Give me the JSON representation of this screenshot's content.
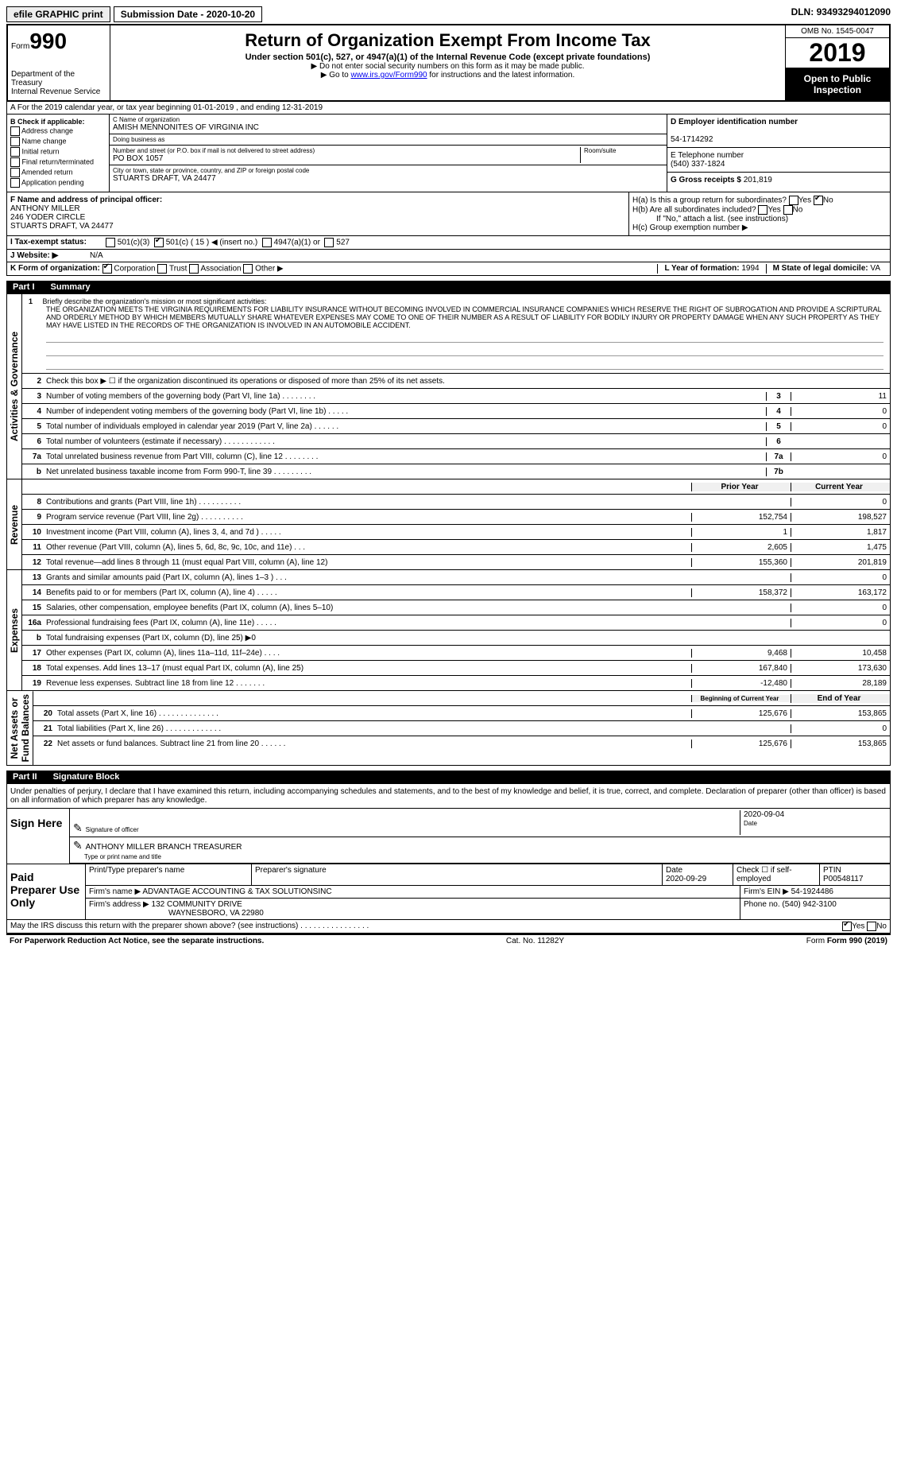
{
  "topbar": {
    "efile": "efile GRAPHIC print",
    "submission_label": "Submission Date - ",
    "submission_date": "2020-10-20",
    "dln_label": "DLN: ",
    "dln": "93493294012090"
  },
  "header": {
    "form_label": "Form",
    "form_number": "990",
    "dept": "Department of the Treasury\nInternal Revenue Service",
    "title": "Return of Organization Exempt From Income Tax",
    "subtitle": "Under section 501(c), 527, or 4947(a)(1) of the Internal Revenue Code (except private foundations)",
    "note1": "▶ Do not enter social security numbers on this form as it may be made public.",
    "note2_pre": "▶ Go to ",
    "note2_link": "www.irs.gov/Form990",
    "note2_post": " for instructions and the latest information.",
    "omb": "OMB No. 1545-0047",
    "year": "2019",
    "inspect": "Open to Public Inspection"
  },
  "rowA": "A For the 2019 calendar year, or tax year beginning 01-01-2019   , and ending 12-31-2019",
  "colB": {
    "header": "B Check if applicable:",
    "items": [
      "Address change",
      "Name change",
      "Initial return",
      "Final return/terminated",
      "Amended return",
      "Application pending"
    ]
  },
  "colC": {
    "name_label": "C Name of organization",
    "name": "AMISH MENNONITES OF VIRGINIA INC",
    "dba_label": "Doing business as",
    "dba": "",
    "addr_label": "Number and street (or P.O. box if mail is not delivered to street address)",
    "addr": "PO BOX 1057",
    "room_label": "Room/suite",
    "city_label": "City or town, state or province, country, and ZIP or foreign postal code",
    "city": "STUARTS DRAFT, VA  24477"
  },
  "colD": {
    "ein_label": "D Employer identification number",
    "ein": "54-1714292",
    "phone_label": "E Telephone number",
    "phone": "(540) 337-1824",
    "gross_label": "G Gross receipts $ ",
    "gross": "201,819"
  },
  "rowF": {
    "label": "F Name and address of principal officer:",
    "name": "ANTHONY MILLER",
    "addr1": "246 YODER CIRCLE",
    "addr2": "STUARTS DRAFT, VA  24477"
  },
  "rowH": {
    "ha": "H(a)  Is this a group return for subordinates?",
    "hb": "H(b)  Are all subordinates included?",
    "hb_note": "If \"No,\" attach a list. (see instructions)",
    "hc": "H(c)  Group exemption number ▶",
    "yes": "Yes",
    "no": "No"
  },
  "rowI": {
    "label": "I   Tax-exempt status:",
    "opts": [
      "501(c)(3)",
      "501(c) ( 15 ) ◀ (insert no.)",
      "4947(a)(1) or",
      "527"
    ]
  },
  "rowJ": {
    "label": "J   Website: ▶",
    "val": "N/A"
  },
  "rowK": {
    "label": "K Form of organization:",
    "opts": [
      "Corporation",
      "Trust",
      "Association",
      "Other ▶"
    ],
    "l_label": "L Year of formation: ",
    "l_val": "1994",
    "m_label": "M State of legal domicile: ",
    "m_val": "VA"
  },
  "part1": {
    "label": "Part I",
    "title": "Summary"
  },
  "mission": {
    "num": "1",
    "prompt": "Briefly describe the organization's mission or most significant activities:",
    "text": "THE ORGANIZATION MEETS THE VIRGINIA REQUIREMENTS FOR LIABILITY INSURANCE WITHOUT BECOMING INVOLVED IN COMMERCIAL INSURANCE COMPANIES WHICH RESERVE THE RIGHT OF SUBROGATION AND PROVIDE A SCRIPTURAL AND ORDERLY METHOD BY WHICH MEMBERS MUTUALLY SHARE WHATEVER EXPENSES MAY COME TO ONE OF THEIR NUMBER AS A RESULT OF LIABILITY FOR BODILY INJURY OR PROPERTY DAMAGE WHEN ANY SUCH PROPERTY AS THEY MAY HAVE LISTED IN THE RECORDS OF THE ORGANIZATION IS INVOLVED IN AN AUTOMOBILE ACCIDENT."
  },
  "vtabs": {
    "ag": "Activities & Governance",
    "rev": "Revenue",
    "exp": "Expenses",
    "na": "Net Assets or\nFund Balances"
  },
  "lines_ag": [
    {
      "n": "2",
      "d": "Check this box ▶ ☐ if the organization discontinued its operations or disposed of more than 25% of its net assets."
    },
    {
      "n": "3",
      "d": "Number of voting members of the governing body (Part VI, line 1a)   .   .   .   .   .   .   .   .",
      "box": "3",
      "v": "11"
    },
    {
      "n": "4",
      "d": "Number of independent voting members of the governing body (Part VI, line 1b)   .   .   .   .   .",
      "box": "4",
      "v": "0"
    },
    {
      "n": "5",
      "d": "Total number of individuals employed in calendar year 2019 (Part V, line 2a)   .   .   .   .   .   .",
      "box": "5",
      "v": "0"
    },
    {
      "n": "6",
      "d": "Total number of volunteers (estimate if necessary)   .   .   .   .   .   .   .   .   .   .   .   .",
      "box": "6",
      "v": ""
    },
    {
      "n": "7a",
      "d": "Total unrelated business revenue from Part VIII, column (C), line 12   .   .   .   .   .   .   .   .",
      "box": "7a",
      "v": "0"
    },
    {
      "n": "b",
      "d": "Net unrelated business taxable income from Form 990-T, line 39   .   .   .   .   .   .   .   .   .",
      "box": "7b",
      "v": ""
    }
  ],
  "col_headers": {
    "prior": "Prior Year",
    "current": "Current Year",
    "boy": "Beginning of Current Year",
    "eoy": "End of Year"
  },
  "lines_rev": [
    {
      "n": "8",
      "d": "Contributions and grants (Part VIII, line 1h)   .   .   .   .   .   .   .   .   .   .",
      "p": "",
      "c": "0"
    },
    {
      "n": "9",
      "d": "Program service revenue (Part VIII, line 2g)   .   .   .   .   .   .   .   .   .   .",
      "p": "152,754",
      "c": "198,527"
    },
    {
      "n": "10",
      "d": "Investment income (Part VIII, column (A), lines 3, 4, and 7d )   .   .   .   .   .",
      "p": "1",
      "c": "1,817"
    },
    {
      "n": "11",
      "d": "Other revenue (Part VIII, column (A), lines 5, 6d, 8c, 9c, 10c, and 11e)   .   .   .",
      "p": "2,605",
      "c": "1,475"
    },
    {
      "n": "12",
      "d": "Total revenue—add lines 8 through 11 (must equal Part VIII, column (A), line 12)",
      "p": "155,360",
      "c": "201,819"
    }
  ],
  "lines_exp": [
    {
      "n": "13",
      "d": "Grants and similar amounts paid (Part IX, column (A), lines 1–3 )   .   .   .",
      "p": "",
      "c": "0"
    },
    {
      "n": "14",
      "d": "Benefits paid to or for members (Part IX, column (A), line 4)   .   .   .   .   .",
      "p": "158,372",
      "c": "163,172"
    },
    {
      "n": "15",
      "d": "Salaries, other compensation, employee benefits (Part IX, column (A), lines 5–10)",
      "p": "",
      "c": "0"
    },
    {
      "n": "16a",
      "d": "Professional fundraising fees (Part IX, column (A), line 11e)   .   .   .   .   .",
      "p": "",
      "c": "0"
    },
    {
      "n": "b",
      "d": "Total fundraising expenses (Part IX, column (D), line 25) ▶0",
      "p": "shade",
      "c": "shade"
    },
    {
      "n": "17",
      "d": "Other expenses (Part IX, column (A), lines 11a–11d, 11f–24e)   .   .   .   .",
      "p": "9,468",
      "c": "10,458"
    },
    {
      "n": "18",
      "d": "Total expenses. Add lines 13–17 (must equal Part IX, column (A), line 25)",
      "p": "167,840",
      "c": "173,630"
    },
    {
      "n": "19",
      "d": "Revenue less expenses. Subtract line 18 from line 12   .   .   .   .   .   .   .",
      "p": "-12,480",
      "c": "28,189"
    }
  ],
  "lines_na": [
    {
      "n": "20",
      "d": "Total assets (Part X, line 16)   .   .   .   .   .   .   .   .   .   .   .   .   .   .",
      "p": "125,676",
      "c": "153,865"
    },
    {
      "n": "21",
      "d": "Total liabilities (Part X, line 26)   .   .   .   .   .   .   .   .   .   .   .   .   .",
      "p": "",
      "c": "0"
    },
    {
      "n": "22",
      "d": "Net assets or fund balances. Subtract line 21 from line 20   .   .   .   .   .   .",
      "p": "125,676",
      "c": "153,865"
    }
  ],
  "part2": {
    "label": "Part II",
    "title": "Signature Block"
  },
  "sig": {
    "intro": "Under penalties of perjury, I declare that I have examined this return, including accompanying schedules and statements, and to the best of my knowledge and belief, it is true, correct, and complete. Declaration of preparer (other than officer) is based on all information of which preparer has any knowledge.",
    "sign_here": "Sign Here",
    "sig_officer": "Signature of officer",
    "date": "Date",
    "date_val": "2020-09-04",
    "name_title": "ANTHONY MILLER  BRANCH TREASURER",
    "type_label": "Type or print name and title"
  },
  "paid": {
    "label": "Paid Preparer Use Only",
    "h1": "Print/Type preparer's name",
    "h2": "Preparer's signature",
    "h3": "Date",
    "h3v": "2020-09-29",
    "h4": "Check ☐ if self-employed",
    "h5": "PTIN",
    "h5v": "P00548117",
    "firm_name_label": "Firm's name      ▶ ",
    "firm_name": "ADVANTAGE ACCOUNTING & TAX SOLUTIONSINC",
    "firm_ein_label": "Firm's EIN ▶ ",
    "firm_ein": "54-1924486",
    "firm_addr_label": "Firm's address ▶ ",
    "firm_addr1": "132 COMMUNITY DRIVE",
    "firm_addr2": "WAYNESBORO, VA  22980",
    "phone_label": "Phone no. ",
    "phone": "(540) 942-3100"
  },
  "discuss": {
    "q": "May the IRS discuss this return with the preparer shown above? (see instructions)   .   .   .   .   .   .   .   .   .   .   .   .   .   .   .   .",
    "yes": "Yes",
    "no": "No"
  },
  "footer": {
    "left": "For Paperwork Reduction Act Notice, see the separate instructions.",
    "mid": "Cat. No. 11282Y",
    "right": "Form 990 (2019)"
  }
}
